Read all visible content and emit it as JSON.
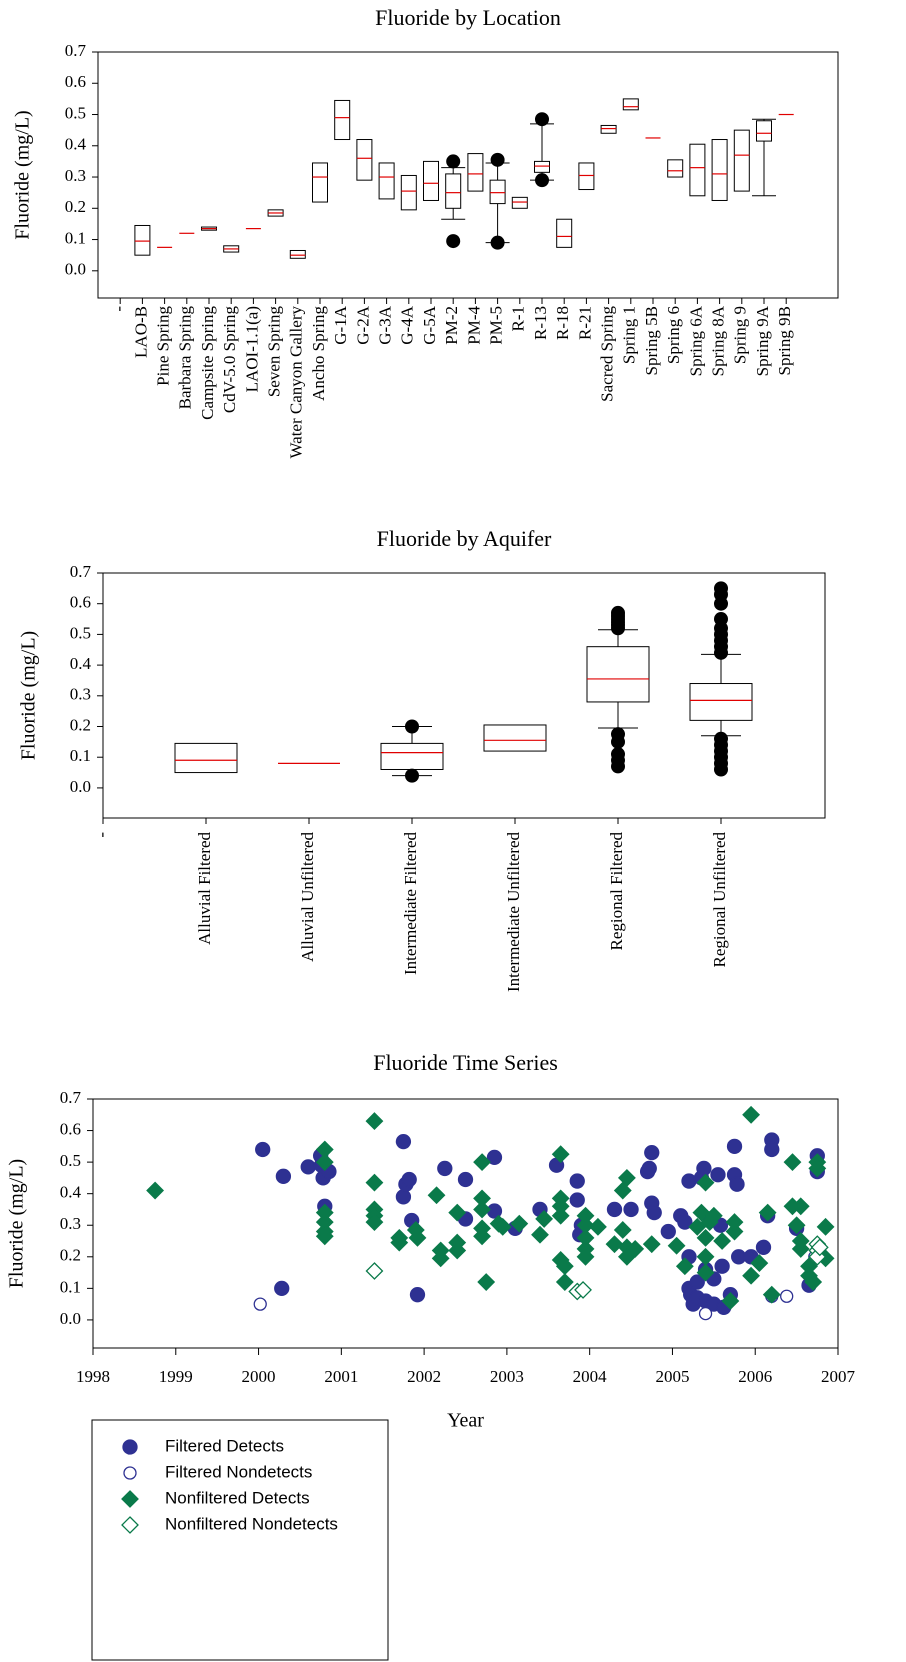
{
  "chart_data": [
    {
      "type": "box",
      "title": "Fluoride by Location",
      "ylabel": "Fluoride (mg/L)",
      "categories": [
        "-",
        "LAO-B",
        "Pine Spring",
        "Barbara Spring",
        "Campsite Spring",
        "CdV-5.0 Spring",
        "LAOI-1.1(a)",
        "Seven Spring",
        "Water Canyon Gallery",
        "Ancho Spring",
        "G-1A",
        "G-2A",
        "G-3A",
        "G-4A",
        "G-5A",
        "PM-2",
        "PM-4",
        "PM-5",
        "R-1",
        "R-13",
        "R-18",
        "R-21",
        "Sacred Spring",
        "Spring 1",
        "Spring 5B",
        "Spring 6",
        "Spring 6A",
        "Spring 8A",
        "Spring 9",
        "Spring 9A",
        "Spring 9B"
      ],
      "boxes": [
        {
          "q1": null,
          "median": null,
          "q3": null
        },
        {
          "q1": 0.05,
          "median": 0.095,
          "q3": 0.145
        },
        {
          "q1": 0.075,
          "median": 0.075,
          "q3": 0.075
        },
        {
          "q1": 0.12,
          "median": 0.12,
          "q3": 0.12
        },
        {
          "q1": 0.13,
          "median": 0.135,
          "q3": 0.14
        },
        {
          "q1": 0.06,
          "median": 0.07,
          "q3": 0.08
        },
        {
          "q1": 0.135,
          "median": 0.135,
          "q3": 0.135
        },
        {
          "q1": 0.175,
          "median": 0.185,
          "q3": 0.195
        },
        {
          "q1": 0.04,
          "median": 0.05,
          "q3": 0.065
        },
        {
          "q1": 0.22,
          "median": 0.3,
          "q3": 0.345
        },
        {
          "q1": 0.42,
          "median": 0.49,
          "q3": 0.545
        },
        {
          "q1": 0.29,
          "median": 0.36,
          "q3": 0.42
        },
        {
          "q1": 0.23,
          "median": 0.3,
          "q3": 0.345
        },
        {
          "q1": 0.195,
          "median": 0.255,
          "q3": 0.305
        },
        {
          "q1": 0.225,
          "median": 0.28,
          "q3": 0.35
        },
        {
          "q1": 0.2,
          "median": 0.25,
          "q3": 0.31,
          "whisker_low": 0.165,
          "whisker_high": 0.33,
          "outliers": [
            0.095,
            0.35
          ]
        },
        {
          "q1": 0.255,
          "median": 0.31,
          "q3": 0.375
        },
        {
          "q1": 0.215,
          "median": 0.25,
          "q3": 0.29,
          "whisker_low": 0.09,
          "whisker_high": 0.345,
          "outliers": [
            0.09,
            0.355
          ]
        },
        {
          "q1": 0.2,
          "median": 0.22,
          "q3": 0.235
        },
        {
          "q1": 0.315,
          "median": 0.335,
          "q3": 0.35,
          "whisker_low": 0.29,
          "whisker_high": 0.47,
          "outliers": [
            0.29,
            0.485
          ]
        },
        {
          "q1": 0.075,
          "median": 0.11,
          "q3": 0.165
        },
        {
          "q1": 0.26,
          "median": 0.305,
          "q3": 0.345
        },
        {
          "q1": 0.44,
          "median": 0.455,
          "q3": 0.465
        },
        {
          "q1": 0.515,
          "median": 0.525,
          "q3": 0.55
        },
        {
          "q1": 0.425,
          "median": 0.425,
          "q3": 0.425
        },
        {
          "q1": 0.3,
          "median": 0.32,
          "q3": 0.355
        },
        {
          "q1": 0.24,
          "median": 0.33,
          "q3": 0.405
        },
        {
          "q1": 0.225,
          "median": 0.31,
          "q3": 0.42
        },
        {
          "q1": 0.255,
          "median": 0.37,
          "q3": 0.45
        },
        {
          "q1": 0.415,
          "median": 0.44,
          "q3": 0.48,
          "whisker_low": 0.24,
          "whisker_high": 0.485
        },
        {
          "q1": 0.5,
          "median": 0.5,
          "q3": 0.5
        }
      ],
      "ylim": [
        -0.087,
        0.7
      ],
      "yticks": [
        {
          "value": 0,
          "label": "0.0"
        },
        0.1,
        0.2,
        0.3,
        0.4,
        0.5,
        0.6,
        0.7
      ],
      "box_color": "#000000",
      "median_color": "#e00000"
    },
    {
      "type": "box",
      "title": "Fluoride by Aquifer",
      "ylabel": "Fluoride (mg/L)",
      "categories": [
        "-",
        "Alluvial Filtered",
        "Alluvial Unfiltered",
        "Intermediate Filtered",
        "Intermediate Unfiltered",
        "Regional Filtered",
        "Regional Unfiltered"
      ],
      "boxes": [
        {
          "q1": null,
          "median": null,
          "q3": null
        },
        {
          "q1": 0.05,
          "median": 0.09,
          "q3": 0.145
        },
        {
          "q1": 0.08,
          "median": 0.08,
          "q3": 0.08
        },
        {
          "q1": 0.06,
          "median": 0.115,
          "q3": 0.145,
          "whisker_low": 0.04,
          "whisker_high": 0.2,
          "outliers": [
            0.04,
            0.2
          ]
        },
        {
          "q1": 0.12,
          "median": 0.155,
          "q3": 0.205
        },
        {
          "q1": 0.28,
          "median": 0.355,
          "q3": 0.46,
          "whisker_low": 0.195,
          "whisker_high": 0.515,
          "outliers": [
            0.07,
            0.09,
            0.11,
            0.15,
            0.175,
            0.52,
            0.53,
            0.54,
            0.55,
            0.56,
            0.57
          ]
        },
        {
          "q1": 0.22,
          "median": 0.285,
          "q3": 0.34,
          "whisker_low": 0.17,
          "whisker_high": 0.435,
          "outliers": [
            0.06,
            0.08,
            0.1,
            0.12,
            0.14,
            0.16,
            0.44,
            0.46,
            0.48,
            0.5,
            0.52,
            0.55,
            0.6,
            0.63,
            0.65
          ]
        }
      ],
      "ylim": [
        -0.098,
        0.7
      ],
      "yticks": [
        {
          "value": 0,
          "label": "0.0"
        },
        0.1,
        0.2,
        0.3,
        0.4,
        0.5,
        0.6,
        0.7
      ],
      "box_color": "#000000",
      "median_color": "#e00000"
    },
    {
      "type": "scatter",
      "title": "Fluoride Time Series",
      "ylabel": "Fluoride (mg/L)",
      "xlabel": "Year",
      "xlim": [
        1998,
        2007
      ],
      "xticks": [
        1998,
        1999,
        2000,
        2001,
        2002,
        2003,
        2004,
        2005,
        2006,
        2007
      ],
      "ylim": [
        -0.089,
        0.7
      ],
      "yticks": [
        {
          "value": 0,
          "label": "0.0"
        },
        0.1,
        0.2,
        0.3,
        0.4,
        0.5,
        0.6,
        0.7
      ],
      "legend": "below",
      "series": [
        {
          "name": "Filtered Detects",
          "color": "#2e3192",
          "marker": "circle",
          "filled": true,
          "x": [
            2000.05,
            2000.3,
            2000.28,
            2000.6,
            2000.75,
            2000.76,
            2000.78,
            2000.8,
            2000.85,
            2001.75,
            2001.75,
            2001.78,
            2001.82,
            2001.85,
            2001.92,
            2002.25,
            2002.5,
            2002.5,
            2002.85,
            2002.85,
            2003.1,
            2003.4,
            2003.6,
            2003.85,
            2003.85,
            2003.88,
            2003.9,
            2004.3,
            2004.5,
            2004.7,
            2004.72,
            2004.75,
            2004.75,
            2004.78,
            2004.95,
            2005.1,
            2005.15,
            2005.2,
            2005.2,
            2005.2,
            2005.22,
            2005.25,
            2005.3,
            2005.3,
            2005.35,
            2005.38,
            2005.4,
            2005.4,
            2005.45,
            2005.5,
            2005.5,
            2005.55,
            2005.58,
            2005.6,
            2005.62,
            2005.7,
            2005.75,
            2005.75,
            2005.78,
            2005.8,
            2005.95,
            2006.1,
            2006.15,
            2006.2,
            2006.2,
            2006.5,
            2006.65,
            2006.75,
            2006.75
          ],
          "values": [
            0.54,
            0.455,
            0.1,
            0.485,
            0.52,
            0.49,
            0.45,
            0.36,
            0.47,
            0.565,
            0.39,
            0.43,
            0.445,
            0.315,
            0.08,
            0.48,
            0.445,
            0.32,
            0.515,
            0.345,
            0.29,
            0.35,
            0.49,
            0.44,
            0.38,
            0.27,
            0.3,
            0.35,
            0.35,
            0.47,
            0.48,
            0.53,
            0.37,
            0.34,
            0.28,
            0.33,
            0.31,
            0.44,
            0.2,
            0.1,
            0.08,
            0.05,
            0.12,
            0.07,
            0.45,
            0.48,
            0.16,
            0.06,
            0.32,
            0.13,
            0.05,
            0.46,
            0.3,
            0.17,
            0.04,
            0.08,
            0.55,
            0.46,
            0.43,
            0.2,
            0.2,
            0.23,
            0.33,
            0.57,
            0.54,
            0.29,
            0.11,
            0.52,
            0.47
          ]
        },
        {
          "name": "Filtered Nondetects",
          "color": "#2e3192",
          "marker": "circle",
          "filled": false,
          "x": [
            2000.02,
            2005.4,
            2006.2,
            2006.38,
            2006.72
          ],
          "values": [
            0.05,
            0.02,
            0.075,
            0.075,
            0.2
          ]
        },
        {
          "name": "Nonfiltered Detects",
          "color": "#0a7a4a",
          "marker": "diamond",
          "filled": true,
          "x": [
            1998.75,
            2000.8,
            2000.8,
            2000.8,
            2000.8,
            2000.8,
            2000.8,
            2001.4,
            2001.4,
            2001.4,
            2001.4,
            2001.4,
            2001.7,
            2001.7,
            2001.9,
            2001.92,
            2002.15,
            2002.2,
            2002.2,
            2002.4,
            2002.4,
            2002.4,
            2002.7,
            2002.7,
            2002.7,
            2002.7,
            2002.7,
            2002.75,
            2002.9,
            2002.95,
            2003.15,
            2003.4,
            2003.45,
            2003.65,
            2003.65,
            2003.65,
            2003.65,
            2003.65,
            2003.7,
            2003.7,
            2003.95,
            2003.95,
            2003.95,
            2003.95,
            2003.95,
            2004.1,
            2004.3,
            2004.4,
            2004.4,
            2004.45,
            2004.45,
            2004.45,
            2004.55,
            2004.75,
            2005.05,
            2005.15,
            2005.3,
            2005.35,
            2005.4,
            2005.4,
            2005.4,
            2005.4,
            2005.45,
            2005.5,
            2005.6,
            2005.7,
            2005.75,
            2005.75,
            2005.95,
            2005.95,
            2006.05,
            2006.15,
            2006.2,
            2006.45,
            2006.45,
            2006.5,
            2006.55,
            2006.55,
            2006.55,
            2006.65,
            2006.65,
            2006.7,
            2006.75,
            2006.75,
            2006.85,
            2006.85
          ],
          "values": [
            0.41,
            0.54,
            0.5,
            0.34,
            0.31,
            0.28,
            0.265,
            0.63,
            0.435,
            0.35,
            0.33,
            0.31,
            0.26,
            0.245,
            0.285,
            0.26,
            0.395,
            0.22,
            0.195,
            0.34,
            0.245,
            0.22,
            0.5,
            0.385,
            0.35,
            0.29,
            0.265,
            0.12,
            0.305,
            0.295,
            0.305,
            0.27,
            0.32,
            0.525,
            0.385,
            0.36,
            0.33,
            0.19,
            0.17,
            0.12,
            0.33,
            0.3,
            0.26,
            0.225,
            0.2,
            0.295,
            0.24,
            0.41,
            0.285,
            0.45,
            0.23,
            0.2,
            0.225,
            0.24,
            0.235,
            0.17,
            0.295,
            0.34,
            0.435,
            0.26,
            0.2,
            0.15,
            0.31,
            0.33,
            0.25,
            0.06,
            0.31,
            0.28,
            0.65,
            0.14,
            0.18,
            0.34,
            0.08,
            0.5,
            0.36,
            0.3,
            0.36,
            0.25,
            0.225,
            0.17,
            0.14,
            0.12,
            0.5,
            0.48,
            0.295,
            0.195
          ]
        },
        {
          "name": "Nonfiltered Nondetects",
          "color": "#0a7a4a",
          "marker": "diamond",
          "filled": false,
          "x": [
            2001.4,
            2003.85,
            2003.92,
            2006.75,
            2006.75,
            2006.75,
            2006.78
          ],
          "values": [
            0.155,
            0.09,
            0.095,
            0.24,
            0.22,
            0.2,
            0.23
          ]
        }
      ]
    }
  ]
}
